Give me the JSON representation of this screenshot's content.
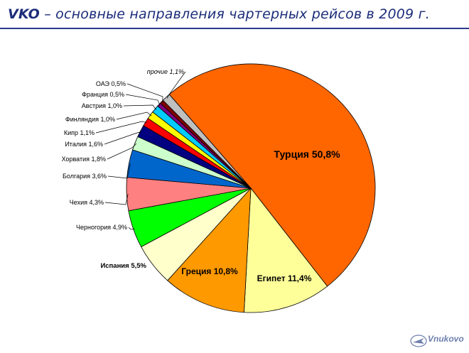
{
  "header": {
    "code": "VKO",
    "rest": " – основные направления чартерных рейсов в 2009 г."
  },
  "logo": {
    "text": "Vnukovo"
  },
  "chart_data": {
    "type": "pie",
    "title": "VKO – основные направления чартерных рейсов в 2009 г.",
    "slices": [
      {
        "label": "Турция 50,8%",
        "value": 50.8,
        "color": "#ff6600"
      },
      {
        "label": "Египет 11,4%",
        "value": 11.4,
        "color": "#ffff99"
      },
      {
        "label": "Греция 10,8%",
        "value": 10.8,
        "color": "#ff9900"
      },
      {
        "label": "Испания 5,5%",
        "value": 5.5,
        "color": "#ffffcc"
      },
      {
        "label": "Черногория 4,9%",
        "value": 4.9,
        "color": "#00ff00"
      },
      {
        "label": "Чехия 4,3%",
        "value": 4.3,
        "color": "#ff8080"
      },
      {
        "label": "Болгария 3,6%",
        "value": 3.6,
        "color": "#0066cc"
      },
      {
        "label": "Хорватия 1,8%",
        "value": 1.8,
        "color": "#ccffcc"
      },
      {
        "label": "Италия  1,6%",
        "value": 1.6,
        "color": "#000080"
      },
      {
        "label": "Кипр 1,1%",
        "value": 1.1,
        "color": "#ff0000"
      },
      {
        "label": "Финляндия 1,0%",
        "value": 1.0,
        "color": "#ffff00"
      },
      {
        "label": "Австрия 1,0%",
        "value": 1.0,
        "color": "#00ccff"
      },
      {
        "label": "Франция 0,5%",
        "value": 0.5,
        "color": "#800080"
      },
      {
        "label": "ОАЭ 0,5%",
        "value": 0.5,
        "color": "#800000"
      },
      {
        "label": "прочие 1,1%",
        "value": 1.1,
        "color": "#c0c0c0"
      }
    ]
  }
}
